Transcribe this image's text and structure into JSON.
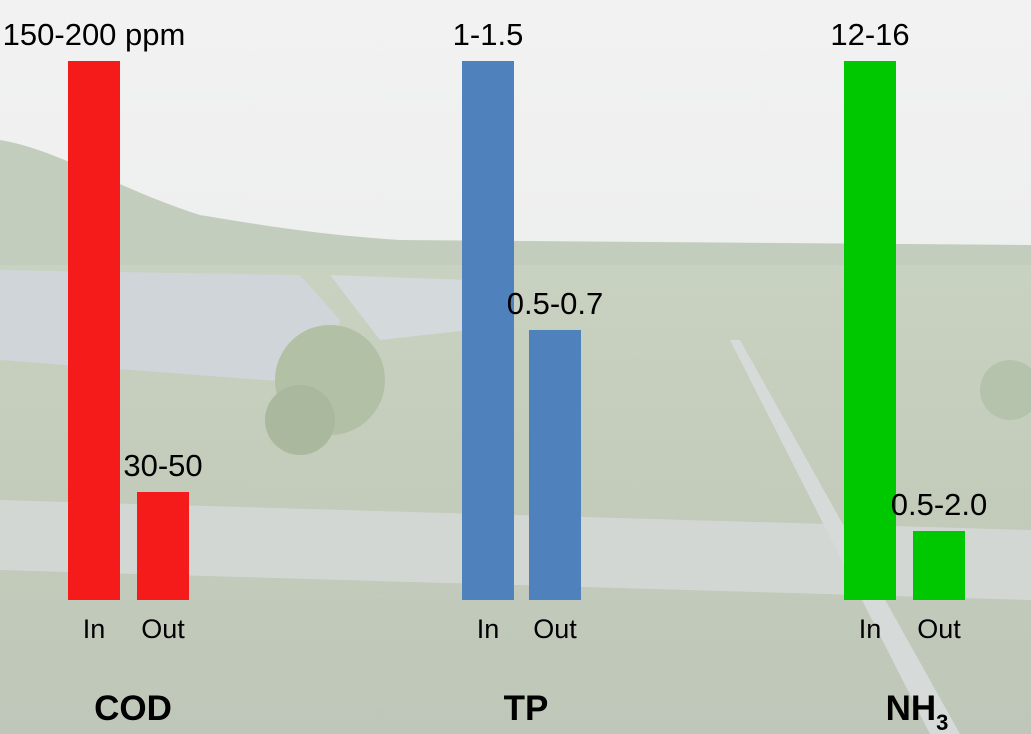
{
  "groups": [
    {
      "name": "COD",
      "color": "#f51b1b",
      "bars": [
        {
          "label": "In",
          "value_label": "150-200 ppm"
        },
        {
          "label": "Out",
          "value_label": "30-50"
        }
      ]
    },
    {
      "name": "TP",
      "color": "#4f81bd",
      "bars": [
        {
          "label": "In",
          "value_label": "1-1.5"
        },
        {
          "label": "Out",
          "value_label": "0.5-0.7"
        }
      ]
    },
    {
      "name": "NH",
      "name_subscript": "3",
      "color": "#00c800",
      "bars": [
        {
          "label": "In",
          "value_label": "12-16"
        },
        {
          "label": "Out",
          "value_label": "0.5-2.0"
        }
      ]
    }
  ]
}
